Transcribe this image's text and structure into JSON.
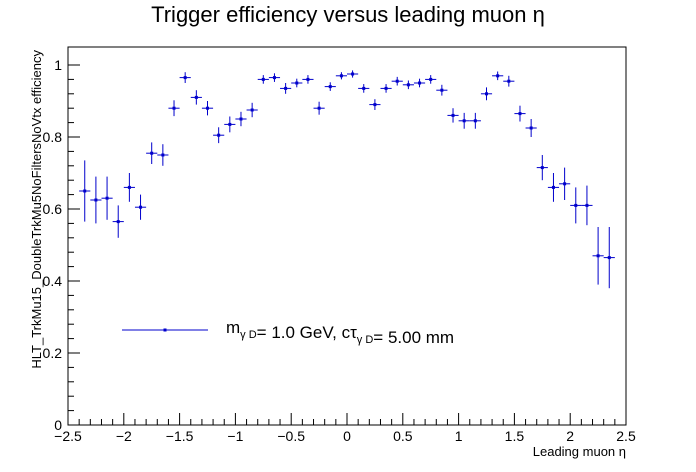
{
  "chart_data": {
    "type": "scatter",
    "title": "Trigger efficiency versus leading muon η",
    "xlabel": "Leading muon η",
    "ylabel": "HLT_TrkMu15_DoubleTrkMu5NoFiltersNoVtx efficiency",
    "xlim": [
      -2.5,
      2.5
    ],
    "ylim": [
      0,
      1.05
    ],
    "x_ticks": [
      "−2.5",
      "−2",
      "−1.5",
      "−1",
      "−0.5",
      "0",
      "0.5",
      "1",
      "1.5",
      "2",
      "2.5"
    ],
    "y_ticks": [
      "0",
      "0.2",
      "0.4",
      "0.6",
      "0.8",
      "1"
    ],
    "grid": false,
    "legend_position": "center-left",
    "colors": {
      "series": "#0000cc",
      "axis": "#000000"
    },
    "series": [
      {
        "name": "m_γD= 1.0 GeV, cτ_γD= 5.00 mm",
        "x_bin_halfwidth": 0.05,
        "points": [
          {
            "x": -2.35,
            "y": 0.65,
            "err": 0.085
          },
          {
            "x": -2.25,
            "y": 0.625,
            "err": 0.065
          },
          {
            "x": -2.15,
            "y": 0.63,
            "err": 0.06
          },
          {
            "x": -2.05,
            "y": 0.565,
            "err": 0.045
          },
          {
            "x": -1.95,
            "y": 0.66,
            "err": 0.04
          },
          {
            "x": -1.85,
            "y": 0.605,
            "err": 0.035
          },
          {
            "x": -1.75,
            "y": 0.755,
            "err": 0.03
          },
          {
            "x": -1.65,
            "y": 0.75,
            "err": 0.03
          },
          {
            "x": -1.55,
            "y": 0.88,
            "err": 0.022
          },
          {
            "x": -1.45,
            "y": 0.965,
            "err": 0.015
          },
          {
            "x": -1.35,
            "y": 0.91,
            "err": 0.02
          },
          {
            "x": -1.25,
            "y": 0.88,
            "err": 0.02
          },
          {
            "x": -1.15,
            "y": 0.805,
            "err": 0.022
          },
          {
            "x": -1.05,
            "y": 0.835,
            "err": 0.022
          },
          {
            "x": -0.95,
            "y": 0.85,
            "err": 0.02
          },
          {
            "x": -0.85,
            "y": 0.875,
            "err": 0.02
          },
          {
            "x": -0.75,
            "y": 0.96,
            "err": 0.012
          },
          {
            "x": -0.65,
            "y": 0.965,
            "err": 0.012
          },
          {
            "x": -0.55,
            "y": 0.935,
            "err": 0.015
          },
          {
            "x": -0.45,
            "y": 0.95,
            "err": 0.012
          },
          {
            "x": -0.35,
            "y": 0.96,
            "err": 0.012
          },
          {
            "x": -0.25,
            "y": 0.88,
            "err": 0.018
          },
          {
            "x": -0.15,
            "y": 0.94,
            "err": 0.012
          },
          {
            "x": -0.05,
            "y": 0.97,
            "err": 0.01
          },
          {
            "x": 0.05,
            "y": 0.975,
            "err": 0.01
          },
          {
            "x": 0.15,
            "y": 0.935,
            "err": 0.012
          },
          {
            "x": 0.25,
            "y": 0.89,
            "err": 0.015
          },
          {
            "x": 0.35,
            "y": 0.935,
            "err": 0.012
          },
          {
            "x": 0.45,
            "y": 0.955,
            "err": 0.012
          },
          {
            "x": 0.55,
            "y": 0.945,
            "err": 0.012
          },
          {
            "x": 0.65,
            "y": 0.95,
            "err": 0.012
          },
          {
            "x": 0.75,
            "y": 0.96,
            "err": 0.012
          },
          {
            "x": 0.85,
            "y": 0.93,
            "err": 0.015
          },
          {
            "x": 0.95,
            "y": 0.86,
            "err": 0.02
          },
          {
            "x": 1.05,
            "y": 0.845,
            "err": 0.022
          },
          {
            "x": 1.15,
            "y": 0.845,
            "err": 0.022
          },
          {
            "x": 1.25,
            "y": 0.92,
            "err": 0.018
          },
          {
            "x": 1.35,
            "y": 0.97,
            "err": 0.012
          },
          {
            "x": 1.45,
            "y": 0.955,
            "err": 0.015
          },
          {
            "x": 1.55,
            "y": 0.865,
            "err": 0.022
          },
          {
            "x": 1.65,
            "y": 0.825,
            "err": 0.025
          },
          {
            "x": 1.75,
            "y": 0.715,
            "err": 0.035
          },
          {
            "x": 1.85,
            "y": 0.66,
            "err": 0.04
          },
          {
            "x": 1.95,
            "y": 0.67,
            "err": 0.045
          },
          {
            "x": 2.05,
            "y": 0.61,
            "err": 0.05
          },
          {
            "x": 2.15,
            "y": 0.61,
            "err": 0.055
          },
          {
            "x": 2.25,
            "y": 0.47,
            "err": 0.08
          },
          {
            "x": 2.35,
            "y": 0.465,
            "err": 0.085
          }
        ]
      }
    ]
  }
}
